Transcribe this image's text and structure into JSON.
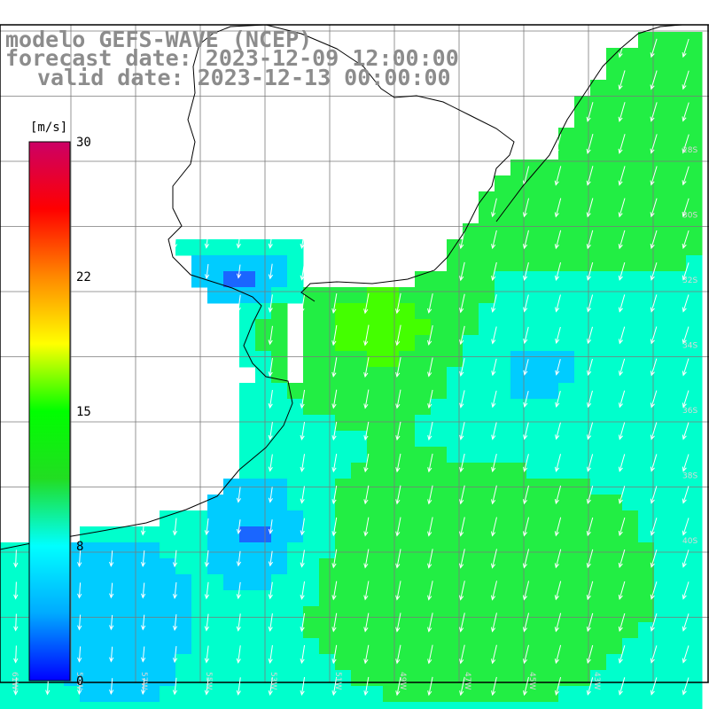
{
  "title": {
    "model": "modelo GEFS-WAVE (NCEP)",
    "forecast": "forecast date: 2023-12-09 12:00:00",
    "valid": "valid date: 2023-12-13 00:00:00"
  },
  "colorbar": {
    "unit": "[m/s]",
    "ticks": [
      "30",
      "22",
      "15",
      "8",
      "0"
    ],
    "colors": [
      "#0000ff",
      "#00aaff",
      "#00ffff",
      "#22dd22",
      "#00ff00",
      "#ffff00",
      "#ff8800",
      "#ff0000",
      "#cc0066"
    ]
  },
  "lat_labels": [
    "28S",
    "30S",
    "32S",
    "34S",
    "36S",
    "38S",
    "40S"
  ],
  "lon_labels": [
    "61W",
    "59W",
    "57W",
    "55W",
    "53W",
    "51W",
    "49W",
    "47W",
    "45W",
    "43W"
  ],
  "field": {
    "wind_direction": "north-northeast",
    "ocean_colors": {
      "weak": "#1a66ff",
      "low": "#00ccff",
      "mid": "#00ffcc",
      "high": "#22ee44",
      "peak": "#44ff00"
    }
  }
}
